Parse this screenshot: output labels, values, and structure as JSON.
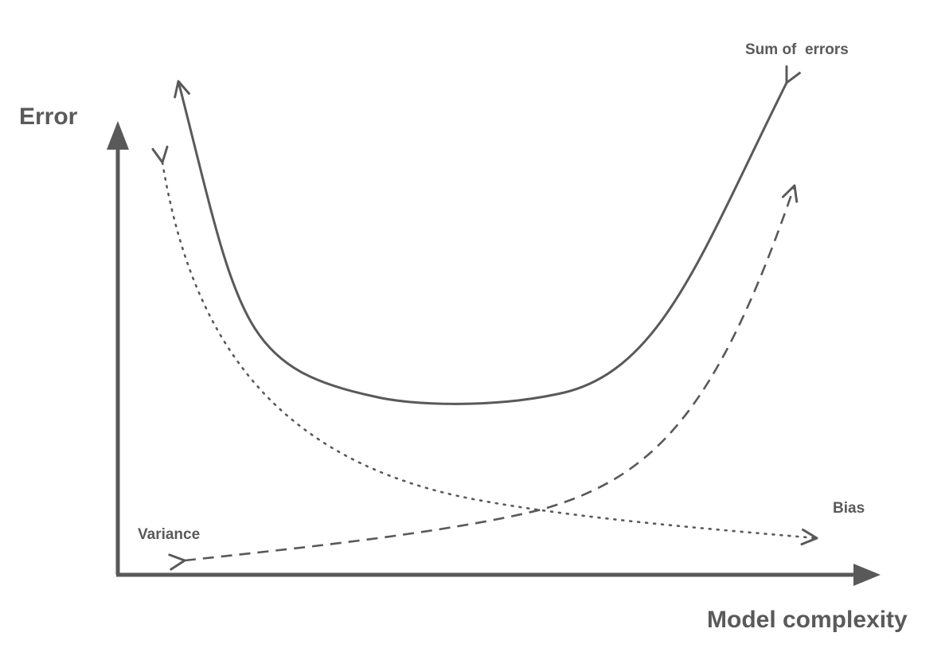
{
  "diagram": {
    "y_axis_label": "Error",
    "x_axis_label": "Model complexity",
    "curves": [
      {
        "id": "total",
        "label": "Sum of  errors",
        "style": "solid"
      },
      {
        "id": "dotted",
        "label": "Bias",
        "style": "dotted"
      },
      {
        "id": "dashed",
        "label": "Variance",
        "style": "dashed"
      }
    ],
    "colors": {
      "stroke": "#595959",
      "text": "#5a5a5a",
      "background": "#ffffff"
    }
  }
}
